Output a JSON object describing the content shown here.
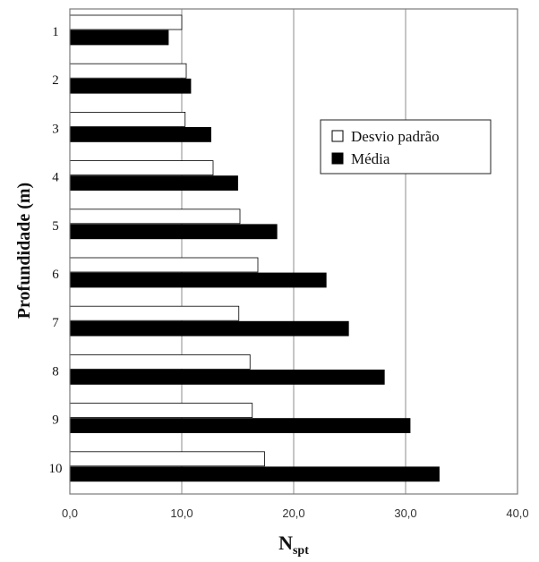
{
  "chart_data": {
    "type": "bar",
    "orientation": "horizontal",
    "categories": [
      "1",
      "2",
      "3",
      "4",
      "5",
      "6",
      "7",
      "8",
      "9",
      "10"
    ],
    "series": [
      {
        "name": "Desvio padrão",
        "color": "#ffffff",
        "values": [
          10.0,
          10.4,
          10.3,
          12.8,
          15.2,
          16.8,
          15.1,
          16.1,
          16.3,
          17.4
        ]
      },
      {
        "name": "Média",
        "color": "#000000",
        "values": [
          8.8,
          10.8,
          12.6,
          15.0,
          18.5,
          22.9,
          24.9,
          28.1,
          30.4,
          33.0
        ]
      }
    ],
    "xlabel": "N",
    "xlabel_sub": "spt",
    "ylabel": "Profundidade (m)",
    "xlim": [
      0,
      40
    ],
    "xticks": [
      "0,0",
      "10,0",
      "20,0",
      "30,0",
      "40,0"
    ],
    "grid": "vertical",
    "legend_position": "right-center"
  }
}
